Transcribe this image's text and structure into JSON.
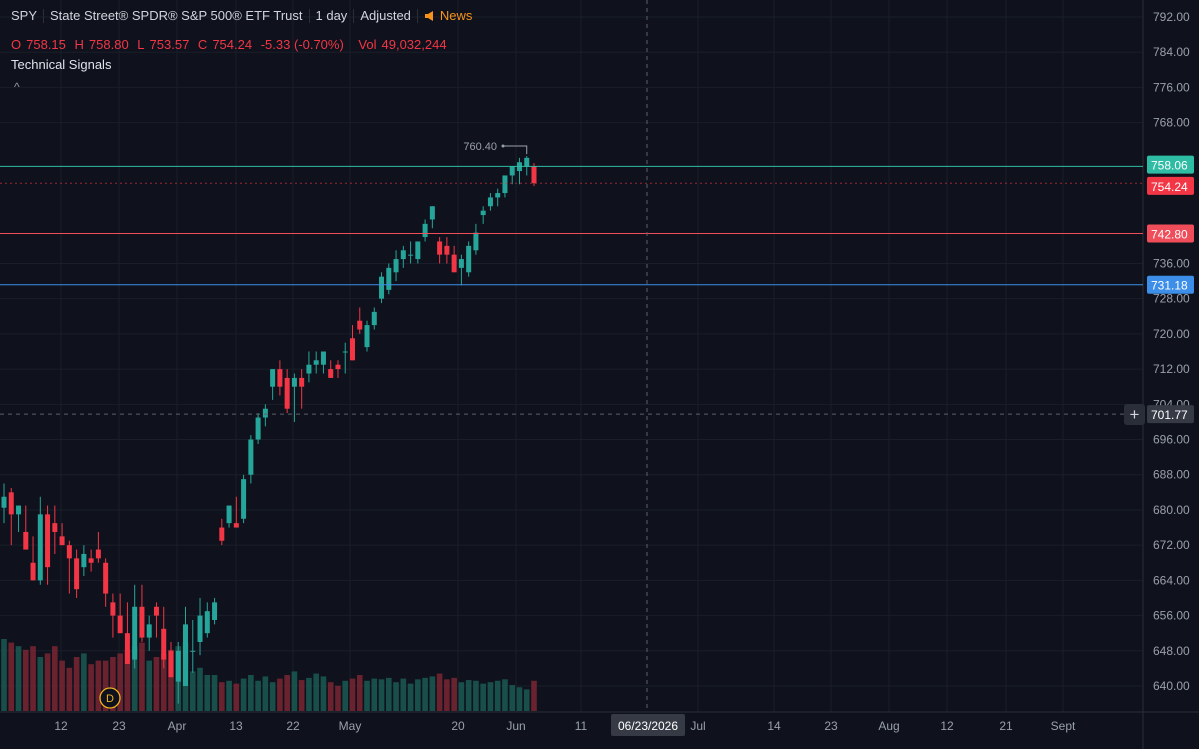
{
  "header": {
    "symbol": "SPY",
    "name": "State Street® SPDR® S&P 500® ETF Trust",
    "interval": "1 day",
    "adjusted": "Adjusted",
    "news": "News"
  },
  "ohlc": {
    "o_label": "O",
    "o": "758.15",
    "h_label": "H",
    "h": "758.80",
    "l_label": "L",
    "l": "753.57",
    "c_label": "C",
    "c": "754.24",
    "change": "-5.33 (-0.70%)",
    "vol_label": "Vol",
    "vol": "49,032,244"
  },
  "indicator": {
    "title": "Technical Signals",
    "caret": "^"
  },
  "crosshair": {
    "date": "06/23/2026",
    "price": "701.77"
  },
  "colors": {
    "background": "#0f121c",
    "up": "#26a69a",
    "down": "#f23645",
    "line_teal": "#2fbca5",
    "line_red": "#ef4d5a",
    "line_blue": "#3d8ee8",
    "crosshair_label": "#363a45"
  },
  "chart_data": {
    "type": "candlestick",
    "price_axis": {
      "ylim": [
        635,
        794
      ],
      "ticks": [
        792,
        784,
        776,
        768,
        736,
        728,
        720,
        712,
        704,
        696,
        688,
        680,
        672,
        664,
        656,
        648,
        640
      ],
      "tick_labels": [
        "792.00",
        "784.00",
        "776.00",
        "768.00",
        "736.00",
        "728.00",
        "720.00",
        "712.00",
        "704.00",
        "696.00",
        "688.00",
        "680.00",
        "672.00",
        "664.00",
        "656.00",
        "648.00",
        "640.00"
      ]
    },
    "time_axis": {
      "labels": [
        "12",
        "23",
        "Apr",
        "13",
        "22",
        "May",
        "20",
        "Jun",
        "11",
        "Jul",
        "14",
        "23",
        "Aug",
        "12",
        "21",
        "Sept"
      ]
    },
    "price_lines": [
      {
        "label": "758.06",
        "value": 758.06,
        "color": "#2fbca5"
      },
      {
        "label": "742.80",
        "value": 742.8,
        "color": "#ef4d5a"
      },
      {
        "label": "731.18",
        "value": 731.18,
        "color": "#3d8ee8"
      }
    ],
    "last_price": {
      "label": "754.24",
      "value": 754.24,
      "color": "#f23645"
    },
    "high_marker": {
      "label": "760.40",
      "value": 760.4
    },
    "event_marker": "D",
    "candles": [
      {
        "o": 680.5,
        "h": 686,
        "l": 677,
        "c": 683
      },
      {
        "o": 684,
        "h": 685,
        "l": 672,
        "c": 679
      },
      {
        "o": 679,
        "h": 681,
        "l": 675,
        "c": 681
      },
      {
        "o": 675,
        "h": 681,
        "l": 671,
        "c": 671
      },
      {
        "o": 668,
        "h": 674,
        "l": 664,
        "c": 664
      },
      {
        "o": 664,
        "h": 683,
        "l": 663,
        "c": 679
      },
      {
        "o": 679,
        "h": 681,
        "l": 663,
        "c": 667
      },
      {
        "o": 677,
        "h": 681,
        "l": 670,
        "c": 675
      },
      {
        "o": 674,
        "h": 677,
        "l": 672,
        "c": 672
      },
      {
        "o": 672,
        "h": 673,
        "l": 661,
        "c": 669
      },
      {
        "o": 669,
        "h": 671,
        "l": 660,
        "c": 662
      },
      {
        "o": 667,
        "h": 672,
        "l": 665,
        "c": 670
      },
      {
        "o": 669,
        "h": 671,
        "l": 666,
        "c": 668
      },
      {
        "o": 671,
        "h": 675,
        "l": 668,
        "c": 669
      },
      {
        "o": 668,
        "h": 669,
        "l": 658,
        "c": 661
      },
      {
        "o": 659,
        "h": 661,
        "l": 651,
        "c": 656
      },
      {
        "o": 656,
        "h": 661,
        "l": 652,
        "c": 652
      },
      {
        "o": 652,
        "h": 659,
        "l": 646,
        "c": 645
      },
      {
        "o": 646,
        "h": 663,
        "l": 644,
        "c": 658
      },
      {
        "o": 658,
        "h": 663,
        "l": 650,
        "c": 651
      },
      {
        "o": 651,
        "h": 656,
        "l": 648,
        "c": 654
      },
      {
        "o": 658,
        "h": 659,
        "l": 651,
        "c": 656
      },
      {
        "o": 653,
        "h": 658,
        "l": 644,
        "c": 646
      },
      {
        "o": 648,
        "h": 650,
        "l": 642,
        "c": 642
      },
      {
        "o": 641,
        "h": 650,
        "l": 636,
        "c": 648
      },
      {
        "o": 640,
        "h": 658,
        "l": 640,
        "c": 654
      },
      {
        "o": 648,
        "h": 655,
        "l": 643,
        "c": 648
      },
      {
        "o": 650,
        "h": 660,
        "l": 647,
        "c": 656
      },
      {
        "o": 652,
        "h": 659,
        "l": 651,
        "c": 657
      },
      {
        "o": 655,
        "h": 660,
        "l": 654,
        "c": 659
      },
      {
        "o": 676,
        "h": 678,
        "l": 672,
        "c": 673
      },
      {
        "o": 677,
        "h": 681,
        "l": 676,
        "c": 681
      },
      {
        "o": 677,
        "h": 683,
        "l": 676,
        "c": 676
      },
      {
        "o": 678,
        "h": 688,
        "l": 677,
        "c": 687
      },
      {
        "o": 688,
        "h": 697,
        "l": 686,
        "c": 696
      },
      {
        "o": 696,
        "h": 702,
        "l": 695,
        "c": 701
      },
      {
        "o": 701,
        "h": 704,
        "l": 699,
        "c": 703
      },
      {
        "o": 708,
        "h": 712,
        "l": 705,
        "c": 712
      },
      {
        "o": 712,
        "h": 714,
        "l": 706,
        "c": 708
      },
      {
        "o": 710,
        "h": 712,
        "l": 702,
        "c": 703
      },
      {
        "o": 708,
        "h": 711,
        "l": 700,
        "c": 710
      },
      {
        "o": 710,
        "h": 712,
        "l": 703,
        "c": 708
      },
      {
        "o": 711,
        "h": 716,
        "l": 709,
        "c": 713
      },
      {
        "o": 713,
        "h": 716,
        "l": 711,
        "c": 714
      },
      {
        "o": 713,
        "h": 715,
        "l": 711,
        "c": 716
      },
      {
        "o": 712,
        "h": 714,
        "l": 710,
        "c": 710
      },
      {
        "o": 713,
        "h": 714,
        "l": 710,
        "c": 712
      },
      {
        "o": 716,
        "h": 718,
        "l": 711,
        "c": 716
      },
      {
        "o": 719,
        "h": 722,
        "l": 714,
        "c": 714
      },
      {
        "o": 723,
        "h": 726,
        "l": 720,
        "c": 721
      },
      {
        "o": 717,
        "h": 723,
        "l": 716,
        "c": 722
      },
      {
        "o": 722,
        "h": 726,
        "l": 721,
        "c": 725
      },
      {
        "o": 728,
        "h": 734,
        "l": 727,
        "c": 733
      },
      {
        "o": 730,
        "h": 736,
        "l": 729,
        "c": 735
      },
      {
        "o": 734,
        "h": 739,
        "l": 732,
        "c": 737
      },
      {
        "o": 737,
        "h": 740,
        "l": 735,
        "c": 739
      },
      {
        "o": 738,
        "h": 741,
        "l": 736,
        "c": 738
      },
      {
        "o": 737,
        "h": 740,
        "l": 736,
        "c": 741
      },
      {
        "o": 742,
        "h": 746,
        "l": 741,
        "c": 745
      },
      {
        "o": 746,
        "h": 749,
        "l": 744,
        "c": 749
      },
      {
        "o": 741,
        "h": 742,
        "l": 736,
        "c": 738
      },
      {
        "o": 740,
        "h": 742,
        "l": 736,
        "c": 738
      },
      {
        "o": 738,
        "h": 740,
        "l": 734,
        "c": 734
      },
      {
        "o": 735,
        "h": 738,
        "l": 731,
        "c": 737
      },
      {
        "o": 734,
        "h": 741,
        "l": 733,
        "c": 740
      },
      {
        "o": 739,
        "h": 745,
        "l": 738,
        "c": 743
      },
      {
        "o": 747,
        "h": 749,
        "l": 745,
        "c": 748
      },
      {
        "o": 749,
        "h": 752,
        "l": 748,
        "c": 751
      },
      {
        "o": 751,
        "h": 753,
        "l": 749,
        "c": 752
      },
      {
        "o": 752,
        "h": 755,
        "l": 751,
        "c": 756
      },
      {
        "o": 756,
        "h": 758,
        "l": 754,
        "c": 758
      },
      {
        "o": 757,
        "h": 760,
        "l": 754,
        "c": 759
      },
      {
        "o": 758,
        "h": 760.4,
        "l": 756,
        "c": 760
      },
      {
        "o": 758.15,
        "h": 758.8,
        "l": 753.57,
        "c": 754.24
      }
    ],
    "volume_units": "relative height",
    "volume": [
      1.0,
      0.95,
      0.9,
      0.85,
      0.9,
      0.75,
      0.8,
      0.9,
      0.7,
      0.6,
      0.75,
      0.8,
      0.65,
      0.7,
      0.7,
      0.75,
      0.8,
      0.85,
      0.9,
      0.95,
      0.7,
      0.75,
      0.8,
      0.85,
      0.9,
      0.95,
      0.55,
      0.6,
      0.5,
      0.5,
      0.4,
      0.42,
      0.38,
      0.45,
      0.5,
      0.42,
      0.48,
      0.4,
      0.45,
      0.5,
      0.55,
      0.43,
      0.46,
      0.52,
      0.48,
      0.4,
      0.35,
      0.42,
      0.45,
      0.5,
      0.42,
      0.45,
      0.44,
      0.46,
      0.4,
      0.45,
      0.38,
      0.44,
      0.46,
      0.48,
      0.52,
      0.44,
      0.46,
      0.4,
      0.43,
      0.42,
      0.38,
      0.4,
      0.42,
      0.44,
      0.36,
      0.33,
      0.3,
      0.42
    ]
  }
}
